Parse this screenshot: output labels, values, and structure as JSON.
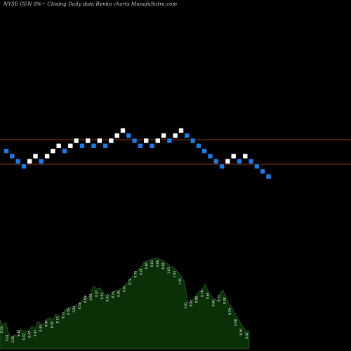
{
  "chart_data": {
    "type": "renko",
    "title": "NYSE GEN  8%~  Closing Daily data  Renko  charts MunafaSutra.com",
    "colors": {
      "up_brick": "#ffffff",
      "down_brick": "#1f7ae0",
      "level_line": "#8b3a14",
      "volume_fill": "#0b3008",
      "volume_edge": "#3a6a35",
      "volume_label": "#ffffff",
      "background": "#000000"
    },
    "bricks": [
      {
        "dir": "down",
        "level": 2
      },
      {
        "dir": "down",
        "level": 1
      },
      {
        "dir": "down",
        "level": 0
      },
      {
        "dir": "down",
        "level": -1
      },
      {
        "dir": "up",
        "level": 0
      },
      {
        "dir": "up",
        "level": 1
      },
      {
        "dir": "down",
        "level": 0
      },
      {
        "dir": "up",
        "level": 1
      },
      {
        "dir": "up",
        "level": 2
      },
      {
        "dir": "up",
        "level": 3
      },
      {
        "dir": "down",
        "level": 2
      },
      {
        "dir": "up",
        "level": 3
      },
      {
        "dir": "up",
        "level": 4
      },
      {
        "dir": "down",
        "level": 3
      },
      {
        "dir": "up",
        "level": 4
      },
      {
        "dir": "down",
        "level": 3
      },
      {
        "dir": "up",
        "level": 4
      },
      {
        "dir": "down",
        "level": 3
      },
      {
        "dir": "up",
        "level": 4
      },
      {
        "dir": "up",
        "level": 5
      },
      {
        "dir": "up",
        "level": 6
      },
      {
        "dir": "down",
        "level": 5
      },
      {
        "dir": "down",
        "level": 4
      },
      {
        "dir": "down",
        "level": 3
      },
      {
        "dir": "up",
        "level": 4
      },
      {
        "dir": "down",
        "level": 3
      },
      {
        "dir": "up",
        "level": 4
      },
      {
        "dir": "up",
        "level": 5
      },
      {
        "dir": "down",
        "level": 4
      },
      {
        "dir": "up",
        "level": 5
      },
      {
        "dir": "up",
        "level": 6
      },
      {
        "dir": "down",
        "level": 5
      },
      {
        "dir": "down",
        "level": 4
      },
      {
        "dir": "down",
        "level": 3
      },
      {
        "dir": "down",
        "level": 2
      },
      {
        "dir": "down",
        "level": 1
      },
      {
        "dir": "down",
        "level": 0
      },
      {
        "dir": "down",
        "level": -1
      },
      {
        "dir": "up",
        "level": 0
      },
      {
        "dir": "up",
        "level": 1
      },
      {
        "dir": "down",
        "level": 0
      },
      {
        "dir": "up",
        "level": 1
      },
      {
        "dir": "down",
        "level": 0
      },
      {
        "dir": "down",
        "level": -1
      },
      {
        "dir": "down",
        "level": -2
      },
      {
        "dir": "down",
        "level": -3
      }
    ],
    "levels": [
      4,
      -1
    ],
    "volume_labels": [
      "0.54",
      "0.56",
      "0.50",
      "0.38",
      "0.42",
      "0.47",
      "0.45",
      "0.44",
      "0.47",
      "0.49",
      "0.53",
      "0.51",
      "0.56",
      "0.59",
      "0.58",
      "0.64",
      "0.65",
      "0.67",
      "0.63",
      "0.62",
      "0.75",
      "0.82",
      "0.81",
      "0.74",
      "0.79",
      "0.78",
      "0.80",
      "0.81",
      "0.86",
      "0.96",
      "1.03",
      "1.04",
      "1.05",
      "1.01",
      "0.98",
      "0.90",
      "0.78",
      "0.86",
      "0.86",
      "0.72",
      "0.80",
      "0.79",
      "0.68",
      "0.56",
      "0.45"
    ],
    "volume": [
      0.54,
      0.5,
      0.52,
      0.43,
      0.38,
      0.42,
      0.4,
      0.47,
      0.45,
      0.44,
      0.46,
      0.49,
      0.47,
      0.53,
      0.51,
      0.5,
      0.55,
      0.56,
      0.54,
      0.59,
      0.58,
      0.56,
      0.62,
      0.64,
      0.65,
      0.63,
      0.67,
      0.66,
      0.7,
      0.75,
      0.72,
      0.77,
      0.82,
      0.8,
      0.81,
      0.78,
      0.74,
      0.76,
      0.74,
      0.79,
      0.78,
      0.8,
      0.81,
      0.84,
      0.86,
      0.9,
      0.92,
      0.96,
      0.98,
      1.02,
      1.03,
      1.04,
      1.05,
      1.05,
      1.05,
      1.04,
      1.03,
      1.01,
      0.99,
      0.98,
      0.96,
      0.93,
      0.9,
      0.85,
      0.7,
      0.66,
      0.72,
      0.75,
      0.78,
      0.8,
      0.84,
      0.78,
      0.74,
      0.72,
      0.7,
      0.76,
      0.79,
      0.74,
      0.68,
      0.65,
      0.6,
      0.56,
      0.52,
      0.48,
      0.45,
      0.45
    ],
    "volume_range": [
      0.3,
      1.1
    ]
  }
}
